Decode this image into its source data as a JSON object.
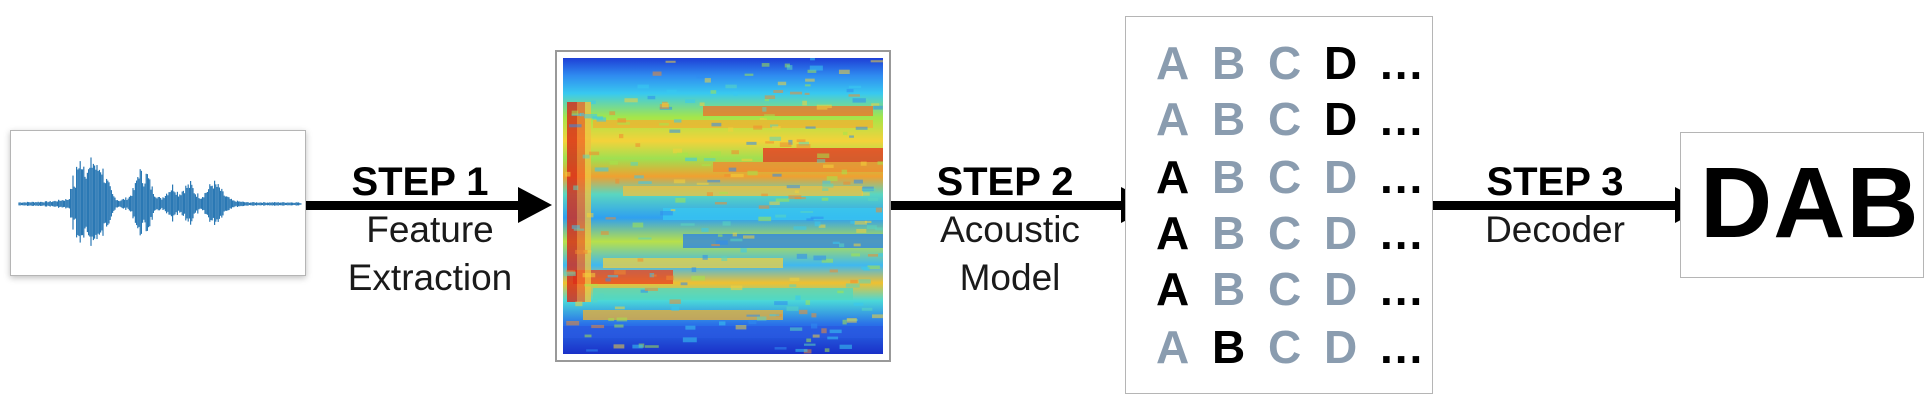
{
  "steps": [
    {
      "title": "STEP 1",
      "desc_line1": "Feature",
      "desc_line2": "Extraction"
    },
    {
      "title": "STEP 2",
      "desc_line1": "Acoustic",
      "desc_line2": "Model"
    },
    {
      "title": "STEP 3",
      "desc_line1": "Decoder",
      "desc_line2": ""
    }
  ],
  "probability_grid": {
    "rows": [
      {
        "letters": [
          "A",
          "B",
          "C",
          "D"
        ],
        "highlight_index": 3,
        "ellipsis": "..."
      },
      {
        "letters": [
          "A",
          "B",
          "C",
          "D"
        ],
        "highlight_index": 3,
        "ellipsis": "..."
      },
      {
        "letters": [
          "A",
          "B",
          "C",
          "D"
        ],
        "highlight_index": 0,
        "ellipsis": "..."
      },
      {
        "letters": [
          "A",
          "B",
          "C",
          "D"
        ],
        "highlight_index": 0,
        "ellipsis": "..."
      },
      {
        "letters": [
          "A",
          "B",
          "C",
          "D"
        ],
        "highlight_index": 0,
        "ellipsis": "..."
      },
      {
        "letters": [
          "A",
          "B",
          "C",
          "D"
        ],
        "highlight_index": 1,
        "ellipsis": "..."
      }
    ],
    "highlight_color": "#000000",
    "dim_color": "#8a9caf"
  },
  "output": {
    "text": "DAB"
  },
  "colors": {
    "waveform": "#2a78b4",
    "arrow": "#000000",
    "panel_border": "#b5b5b5"
  }
}
